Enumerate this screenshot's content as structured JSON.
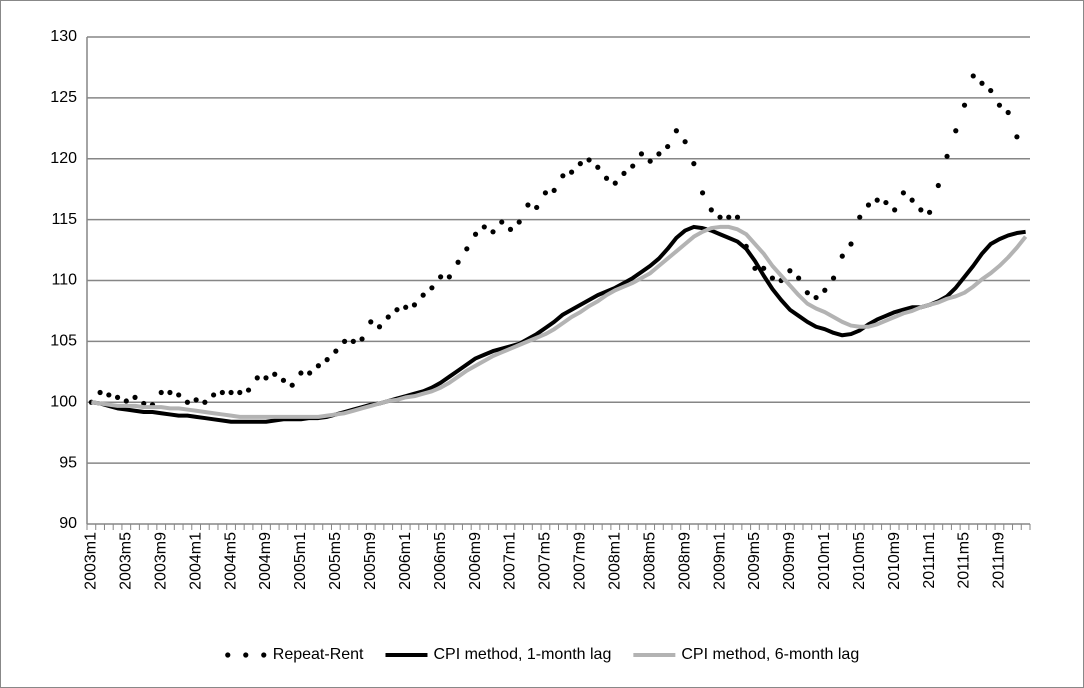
{
  "chart_data": {
    "type": "line",
    "categories": [
      "2003m1",
      null,
      null,
      null,
      "2003m5",
      null,
      null,
      null,
      "2003m9",
      null,
      null,
      null,
      "2004m1",
      null,
      null,
      null,
      "2004m5",
      null,
      null,
      null,
      "2004m9",
      null,
      null,
      null,
      "2005m1",
      null,
      null,
      null,
      "2005m5",
      null,
      null,
      null,
      "2005m9",
      null,
      null,
      null,
      "2006m1",
      null,
      null,
      null,
      "2006m5",
      null,
      null,
      null,
      "2006m9",
      null,
      null,
      null,
      "2007m1",
      null,
      null,
      null,
      "2007m5",
      null,
      null,
      null,
      "2007m9",
      null,
      null,
      null,
      "2008m1",
      null,
      null,
      null,
      "2008m5",
      null,
      null,
      null,
      "2008m9",
      null,
      null,
      null,
      "2009m1",
      null,
      null,
      null,
      "2009m5",
      null,
      null,
      null,
      "2009m9",
      null,
      null,
      null,
      "2010m1",
      null,
      null,
      null,
      "2010m5",
      null,
      null,
      null,
      "2010m9",
      null,
      null,
      null,
      "2011m1",
      null,
      null,
      null,
      "2011m5",
      null,
      null,
      null,
      "2011m9",
      null,
      null,
      null
    ],
    "series": [
      {
        "name": "Repeat-Rent",
        "color": "#000000",
        "style": "dots",
        "values": [
          100.0,
          100.8,
          100.6,
          100.4,
          100.1,
          100.4,
          99.9,
          99.8,
          100.8,
          100.8,
          100.6,
          100.0,
          100.2,
          100.0,
          100.6,
          100.8,
          100.8,
          100.8,
          101.0,
          102.0,
          102.0,
          102.3,
          101.8,
          101.4,
          102.4,
          102.4,
          103.0,
          103.5,
          104.2,
          105.0,
          105.0,
          105.2,
          106.6,
          106.2,
          107.0,
          107.6,
          107.8,
          108.0,
          108.8,
          109.4,
          110.3,
          110.3,
          111.5,
          112.6,
          113.8,
          114.4,
          114.0,
          114.8,
          114.2,
          114.8,
          116.2,
          116.0,
          117.2,
          117.4,
          118.6,
          118.9,
          119.6,
          119.9,
          119.3,
          118.4,
          118.0,
          118.8,
          119.4,
          120.4,
          119.8,
          120.4,
          121.0,
          122.3,
          121.4,
          119.6,
          117.2,
          115.8,
          115.2,
          115.2,
          115.2,
          112.8,
          111.0,
          111.0,
          110.2,
          110.0,
          110.8,
          110.2,
          109.0,
          108.6,
          109.2,
          110.2,
          112.0,
          113.0,
          115.2,
          116.2,
          116.6,
          116.4,
          115.8,
          117.2,
          116.6,
          115.8,
          115.6,
          117.8,
          120.2,
          122.3,
          124.4,
          126.8,
          126.2,
          125.6,
          124.4,
          123.8,
          121.8,
          null
        ]
      },
      {
        "name": "CPI method, 1-month lag",
        "color": "#000000",
        "style": "line",
        "values": [
          100.0,
          99.9,
          99.7,
          99.5,
          99.4,
          99.3,
          99.2,
          99.2,
          99.1,
          99.0,
          98.9,
          98.9,
          98.8,
          98.7,
          98.6,
          98.5,
          98.4,
          98.4,
          98.4,
          98.4,
          98.4,
          98.5,
          98.6,
          98.6,
          98.6,
          98.7,
          98.7,
          98.8,
          99.0,
          99.2,
          99.4,
          99.6,
          99.8,
          99.9,
          100.1,
          100.3,
          100.5,
          100.7,
          100.9,
          101.2,
          101.6,
          102.1,
          102.6,
          103.1,
          103.6,
          103.9,
          104.2,
          104.4,
          104.6,
          104.8,
          105.2,
          105.6,
          106.1,
          106.6,
          107.2,
          107.6,
          108.0,
          108.4,
          108.8,
          109.1,
          109.4,
          109.8,
          110.2,
          110.7,
          111.2,
          111.8,
          112.6,
          113.5,
          114.1,
          114.4,
          114.3,
          114.1,
          113.8,
          113.5,
          113.2,
          112.6,
          111.6,
          110.4,
          109.3,
          108.4,
          107.6,
          107.1,
          106.6,
          106.2,
          106.0,
          105.7,
          105.5,
          105.6,
          105.9,
          106.4,
          106.8,
          107.1,
          107.4,
          107.6,
          107.8,
          107.8,
          108.0,
          108.3,
          108.7,
          109.4,
          110.3,
          111.2,
          112.2,
          113.0,
          113.4,
          113.7,
          113.9,
          114.0
        ]
      },
      {
        "name": "CPI method, 6-month lag",
        "color": "#b3b3b3",
        "style": "line",
        "values": [
          100.0,
          99.9,
          99.8,
          99.7,
          99.7,
          99.7,
          99.6,
          99.6,
          99.6,
          99.5,
          99.5,
          99.4,
          99.3,
          99.2,
          99.1,
          99.0,
          98.9,
          98.8,
          98.8,
          98.8,
          98.8,
          98.8,
          98.8,
          98.8,
          98.8,
          98.8,
          98.8,
          98.9,
          99.0,
          99.1,
          99.3,
          99.5,
          99.7,
          99.9,
          100.1,
          100.2,
          100.4,
          100.5,
          100.7,
          100.9,
          101.2,
          101.6,
          102.1,
          102.6,
          103.0,
          103.4,
          103.8,
          104.1,
          104.4,
          104.7,
          105.0,
          105.3,
          105.6,
          106.0,
          106.5,
          107.0,
          107.4,
          107.9,
          108.3,
          108.8,
          109.2,
          109.5,
          109.8,
          110.2,
          110.6,
          111.2,
          111.8,
          112.4,
          113.0,
          113.6,
          114.0,
          114.3,
          114.4,
          114.4,
          114.2,
          113.8,
          113.0,
          112.2,
          111.2,
          110.4,
          109.6,
          108.8,
          108.1,
          107.7,
          107.4,
          107.0,
          106.6,
          106.3,
          106.2,
          106.2,
          106.4,
          106.7,
          107.0,
          107.3,
          107.5,
          107.8,
          108.0,
          108.2,
          108.5,
          108.7,
          109.0,
          109.5,
          110.1,
          110.6,
          111.2,
          111.9,
          112.7,
          113.6
        ]
      }
    ],
    "ylim": [
      90,
      130
    ],
    "yticks": [
      90,
      95,
      100,
      105,
      110,
      115,
      120,
      125,
      130
    ],
    "grid": true,
    "legend": "bottom"
  }
}
